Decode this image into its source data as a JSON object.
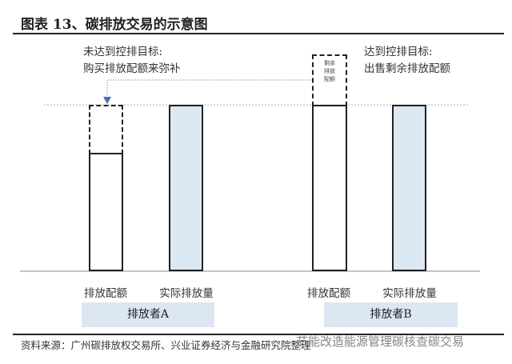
{
  "title": "图表 13、碳排放交易的示意图",
  "annotations": {
    "a_line1": "未达到控排目标:",
    "a_line2": "购买排放配额来弥补",
    "b_line1": "达到控排目标:",
    "b_line2": "出售剩余排放配额",
    "remaining_box": "剩余排放配额"
  },
  "bars": [
    {
      "group": "排放者A",
      "label": "排放配额",
      "level": 0.71,
      "dashed_to": 1.0,
      "fill": "#ffffff"
    },
    {
      "group": "排放者A",
      "label": "实际排放量",
      "level": 1.0,
      "fill": "#dde8f5"
    },
    {
      "group": "排放者B",
      "label": "排放配额",
      "level": 1.0,
      "dashed_to": 1.3,
      "fill": "#ffffff"
    },
    {
      "group": "排放者B",
      "label": "实际排放量",
      "level": 1.0,
      "fill": "#dde8f5"
    }
  ],
  "groups": [
    "排放者A",
    "排放者B"
  ],
  "arrow_color": "#4a6fb5",
  "source": "资料来源：广州碳排放权交易所、兴业证券经济与金融研究院整理",
  "watermark": "节能改造能源管理碳核查碳交易"
}
